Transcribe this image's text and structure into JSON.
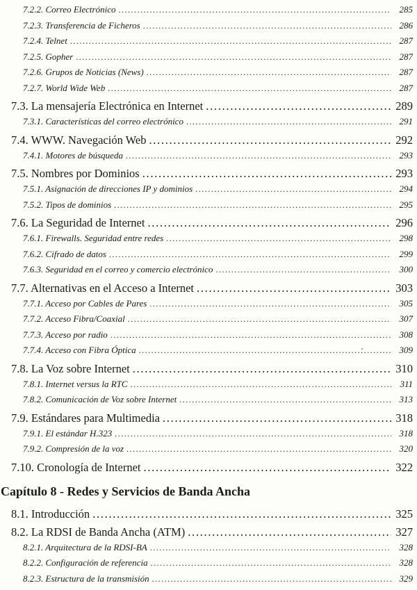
{
  "colors": {
    "paper": "#fcfcf9",
    "ink": "#1b1b1b"
  },
  "toc": {
    "entries": [
      {
        "type": "subsection",
        "label": "7.2.2. Correo Electrónico",
        "page": "285"
      },
      {
        "type": "subsection",
        "label": "7.2.3. Transferencia de Ficheros",
        "page": "286"
      },
      {
        "type": "subsection",
        "label": "7.2.4. Telnet",
        "page": "287"
      },
      {
        "type": "subsection",
        "label": "7.2.5. Gopher",
        "page": "287"
      },
      {
        "type": "subsection",
        "label": "7.2.6. Grupos de Noticias (News)",
        "page": "287"
      },
      {
        "type": "subsection",
        "label": "7.2.7. World Wide Web",
        "page": "287"
      },
      {
        "type": "section",
        "label": "7.3. La mensajería Electrónica en Internet",
        "page": "289"
      },
      {
        "type": "subsection",
        "label": "7.3.1. Características del correo electrónico",
        "page": "291"
      },
      {
        "type": "section",
        "label": "7.4. WWW. Navegación Web",
        "page": "292"
      },
      {
        "type": "subsection",
        "label": "7.4.1. Motores de búsqueda",
        "page": "293"
      },
      {
        "type": "section",
        "label": "7.5. Nombres por Dominios",
        "page": "293"
      },
      {
        "type": "subsection",
        "label": "7.5.1. Asignación de direcciones IP y dominios",
        "page": "294"
      },
      {
        "type": "subsection",
        "label": "7.5.2. Tipos de dominios",
        "page": "295"
      },
      {
        "type": "section",
        "label": "7.6. La Seguridad de Internet",
        "page": "296"
      },
      {
        "type": "subsection",
        "label": "7.6.1. Firewalls. Seguridad entre redes",
        "page": "298"
      },
      {
        "type": "subsection",
        "label": "7.6.2. Cifrado de datos",
        "page": "299"
      },
      {
        "type": "subsection",
        "label": "7.6.3. Seguridad en el correo y comercio electrónico",
        "page": "300"
      },
      {
        "type": "section",
        "label": "7.7. Alternativas en el Acceso a Internet",
        "page": "303"
      },
      {
        "type": "subsection",
        "label": "7.7.1. Acceso por Cables de Pares",
        "page": "305"
      },
      {
        "type": "subsection",
        "label": "7.7.2. Acceso Fibra/Coaxial",
        "page": "307"
      },
      {
        "type": "subsection",
        "label": "7.7.3. Acceso por radio",
        "page": "308"
      },
      {
        "type": "subsection",
        "label": "7.7.4. Acceso con Fibra Óptica",
        "page": "309",
        "artifact": "'"
      },
      {
        "type": "section",
        "label": "7.8. La Voz sobre Internet",
        "page": "310"
      },
      {
        "type": "subsection",
        "label": "7.8.1. Internet versus la RTC",
        "page": "311"
      },
      {
        "type": "subsection",
        "label": "7.8.2. Comunicación de Voz sobre Internet",
        "page": "313"
      },
      {
        "type": "section",
        "label": "7.9. Estándares para Multimedia",
        "page": "318"
      },
      {
        "type": "subsection",
        "label": "7.9.1. El estándar H.323",
        "page": "318"
      },
      {
        "type": "subsection",
        "label": "7.9.2. Compresión de la voz",
        "page": "320"
      },
      {
        "type": "section",
        "label": "7.10. Cronología de Internet",
        "page": "322"
      },
      {
        "type": "chapter",
        "label": "Capítulo 8 - Redes y Servicios de Banda Ancha",
        "page": ""
      },
      {
        "type": "section",
        "label": "8.1. Introducción",
        "page": "325"
      },
      {
        "type": "section",
        "label": "8.2. La RDSI de Banda Ancha (ATM)",
        "page": "327"
      },
      {
        "type": "subsection",
        "label": "8.2.1. Arquitectura de la RDSI-BA",
        "page": "328"
      },
      {
        "type": "subsection",
        "label": "8.2.2. Configuración de referencia",
        "page": "328"
      },
      {
        "type": "subsection",
        "label": "8.2.3. Estructura de la transmisión",
        "page": "329"
      }
    ]
  }
}
